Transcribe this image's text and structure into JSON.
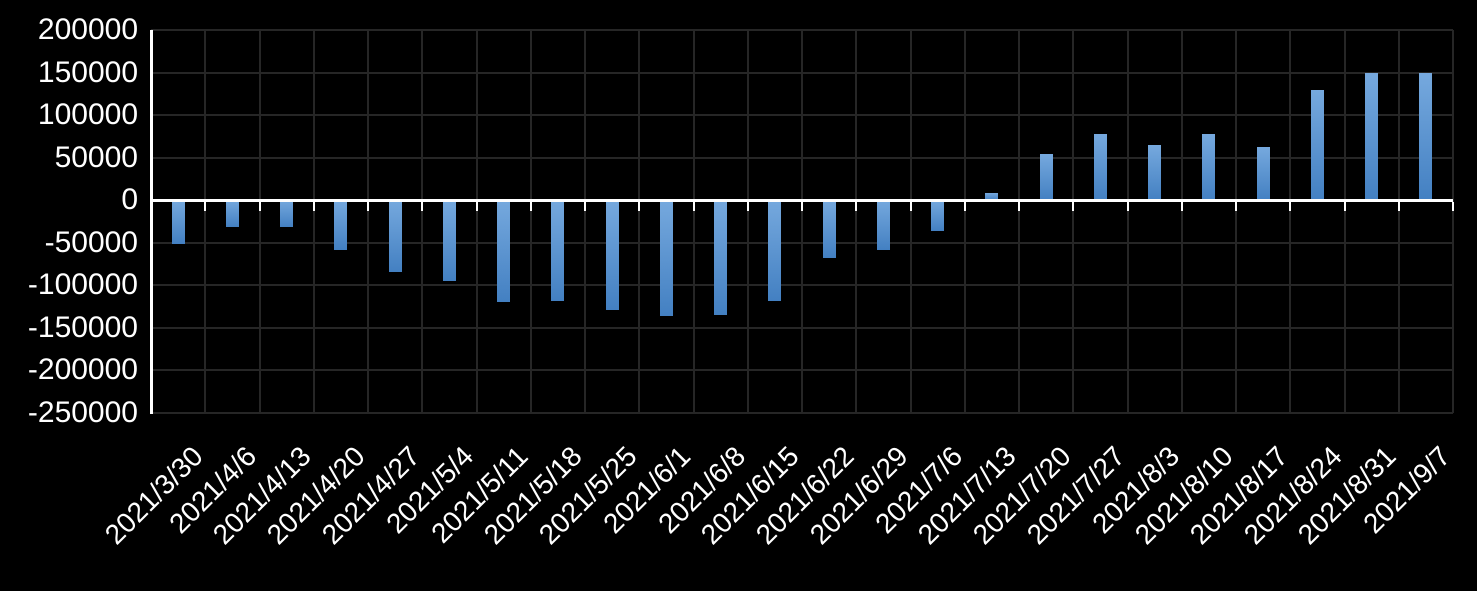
{
  "chart_data": {
    "type": "bar",
    "title": "",
    "xlabel": "",
    "ylabel": "",
    "categories": [
      "2021/3/30",
      "2021/4/6",
      "2021/4/13",
      "2021/4/20",
      "2021/4/27",
      "2021/5/4",
      "2021/5/11",
      "2021/5/18",
      "2021/5/25",
      "2021/6/1",
      "2021/6/8",
      "2021/6/15",
      "2021/6/22",
      "2021/6/29",
      "2021/7/6",
      "2021/7/13",
      "2021/7/20",
      "2021/7/27",
      "2021/8/3",
      "2021/8/10",
      "2021/8/17",
      "2021/8/24",
      "2021/8/31",
      "2021/9/7"
    ],
    "values": [
      -51000,
      -31000,
      -32000,
      -58000,
      -84000,
      -95000,
      -120000,
      -118000,
      -129000,
      -136000,
      -135000,
      -119000,
      -68000,
      -59000,
      -36000,
      8000,
      54000,
      78000,
      65000,
      78000,
      63000,
      130000,
      150000,
      150000
    ],
    "ylim": [
      -250000,
      200000
    ],
    "y_tick_interval": 50000,
    "y_tick_labels": [
      "200000",
      "150000",
      "100000",
      "50000",
      "0",
      "-50000",
      "-100000",
      "-150000",
      "-200000",
      "-250000"
    ],
    "x_tick_label_rotation_deg": 45,
    "grid": true,
    "legend_position": "none",
    "colors": {
      "background": "#000000",
      "bar_gradient_top": "#76A9DE",
      "bar_gradient_bottom": "#4380C2",
      "gridline": "#262626",
      "axis_line": "#FFFFFF",
      "tick_label_text": "#FFFFFF"
    }
  }
}
